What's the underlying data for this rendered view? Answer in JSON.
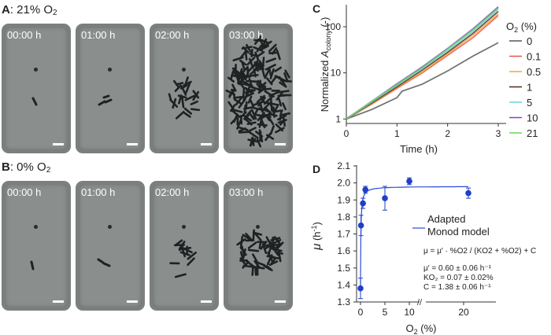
{
  "panel_a": {
    "letter": "A",
    "label": ": 21% O",
    "sub": "2",
    "times": [
      "00:00 h",
      "01:00 h",
      "02:00 h",
      "03:00 h"
    ]
  },
  "panel_b": {
    "letter": "B",
    "label": ": 0% O",
    "sub": "2",
    "times": [
      "00:00 h",
      "01:00 h",
      "02:00 h",
      "03:00 h"
    ]
  },
  "colors": {
    "micro_bg": "#8a8e8d",
    "cell": "#1e2222",
    "fit_line": "#2a4bd7",
    "marker": "#1f3fc7"
  },
  "chart_data": [
    {
      "id": "C",
      "type": "line",
      "letter": "C",
      "xlabel": "Time (h)",
      "ylabel_prefix": "Normalized ",
      "ylabel_var": "A",
      "ylabel_sub": "colony",
      "ylabel_suffix": " (-)",
      "yscale": "log",
      "xlim": [
        0,
        3
      ],
      "ylim": [
        0.8,
        300
      ],
      "xticks": [
        "0",
        "1",
        "2",
        "3"
      ],
      "yticks": [
        "1",
        "10",
        "100"
      ],
      "legend_title": "O",
      "legend_title_sub": "2",
      "legend_title_suffix": " (%)",
      "legend_position": "right",
      "series": [
        {
          "name": "0",
          "color": "#555555",
          "x": [
            0,
            0.5,
            1.0,
            1.1,
            1.5,
            2.0,
            2.5,
            3.0
          ],
          "y": [
            1,
            1.6,
            2.9,
            4.0,
            5.7,
            11,
            23,
            45
          ]
        },
        {
          "name": "0.1",
          "color": "#e8534b",
          "x": [
            0,
            0.5,
            1.0,
            1.5,
            2.0,
            2.5,
            3.0
          ],
          "y": [
            1,
            2.1,
            4.6,
            10,
            24,
            58,
            175
          ]
        },
        {
          "name": "0.5",
          "color": "#f0a63a",
          "x": [
            0,
            0.5,
            1.0,
            1.5,
            2.0,
            2.5,
            3.0
          ],
          "y": [
            1,
            2.1,
            4.8,
            10.5,
            26,
            65,
            190
          ]
        },
        {
          "name": "1",
          "color": "#4a2a1e",
          "x": [
            0,
            0.5,
            1.0,
            1.5,
            2.0,
            2.5,
            3.0
          ],
          "y": [
            1,
            2.2,
            5.0,
            11.5,
            28,
            72,
            215
          ]
        },
        {
          "name": "5",
          "color": "#6ccfe6",
          "x": [
            0,
            0.5,
            1.0,
            1.5,
            2.0,
            2.5,
            3.0
          ],
          "y": [
            1,
            2.3,
            5.4,
            12.5,
            31,
            80,
            240
          ]
        },
        {
          "name": "10",
          "color": "#8a3fcf",
          "x": [
            0,
            0.5,
            1.0,
            1.5,
            2.0,
            2.5,
            3.0
          ],
          "y": [
            1,
            2.4,
            5.8,
            13.5,
            34,
            90,
            270
          ]
        },
        {
          "name": "21",
          "color": "#67d65b",
          "x": [
            0,
            0.5,
            1.0,
            1.5,
            2.0,
            2.5,
            3.0
          ],
          "y": [
            1,
            2.4,
            5.6,
            13,
            33,
            86,
            255
          ]
        }
      ]
    },
    {
      "id": "D",
      "type": "scatter",
      "letter": "D",
      "xlabel_prefix": "O",
      "xlabel_sub": "2",
      "xlabel_suffix": " (%)",
      "ylabel_var": "μ",
      "ylabel_unit_open": " (h",
      "ylabel_unit_sup": "-1",
      "ylabel_unit_close": ")",
      "xlim": [
        -1,
        22
      ],
      "ylim": [
        1.3,
        2.1
      ],
      "axis_break_label": "//",
      "xticks": [
        "0",
        "5",
        "10",
        "20"
      ],
      "yticks": [
        "1.3",
        "1.4",
        "1.5",
        "1.6",
        "1.7",
        "1.8",
        "1.9",
        "2.0",
        "2.1"
      ],
      "points": [
        {
          "x": 0,
          "y": 1.38,
          "err": 0.06
        },
        {
          "x": 0.1,
          "y": 1.75,
          "err": 0.06
        },
        {
          "x": 0.5,
          "y": 1.88,
          "err": 0.03
        },
        {
          "x": 1,
          "y": 1.96,
          "err": 0.02
        },
        {
          "x": 5,
          "y": 1.91,
          "err": 0.07
        },
        {
          "x": 10,
          "y": 2.01,
          "err": 0.02
        },
        {
          "x": 21,
          "y": 1.94,
          "err": 0.03
        }
      ],
      "fit": {
        "mu_prime": 0.6,
        "K": 0.07,
        "C": 1.38
      },
      "legend": "Adapted Monod model",
      "legend_line1": "Adapted",
      "legend_line2": "Monod model",
      "equation": "μ = μ′ · %O2 / (KO2 + %O2) + C",
      "param_mu": "μ′  = 0.60 ± 0.06 h⁻¹",
      "param_k": "KO₂ = 0.07 ± 0.02%",
      "param_c": "C  = 1.38 ± 0.06 h⁻¹"
    }
  ]
}
